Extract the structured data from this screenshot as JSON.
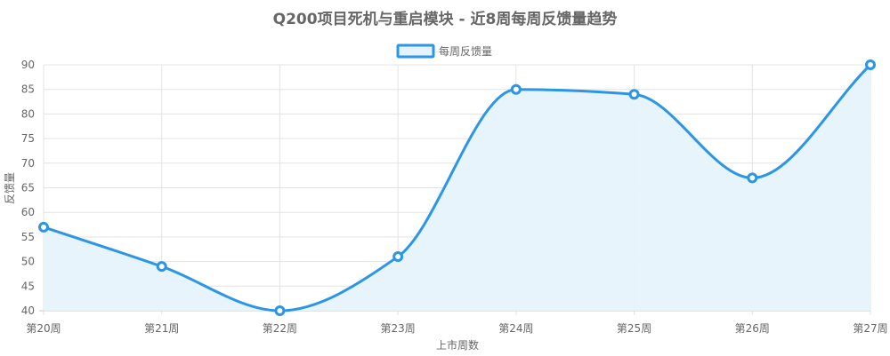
{
  "chart_data": {
    "type": "line",
    "title": "Q200项目死机与重启模块 - 近8周每周反馈量趋势",
    "xlabel": "上市周数",
    "ylabel": "反馈量",
    "categories": [
      "第20周",
      "第21周",
      "第22周",
      "第23周",
      "第24周",
      "第25周",
      "第26周",
      "第27周"
    ],
    "series": [
      {
        "name": "每周反馈量",
        "values": [
          57,
          49,
          40,
          51,
          85,
          84,
          67,
          90
        ],
        "color": "#2b95e8",
        "fill": "#e6f3fc"
      }
    ],
    "ylim": [
      40,
      90
    ],
    "yticks": [
      40,
      45,
      50,
      55,
      60,
      65,
      70,
      75,
      80,
      85,
      90
    ],
    "grid": true,
    "legend": "top-center",
    "smooth": true,
    "filled": true
  }
}
